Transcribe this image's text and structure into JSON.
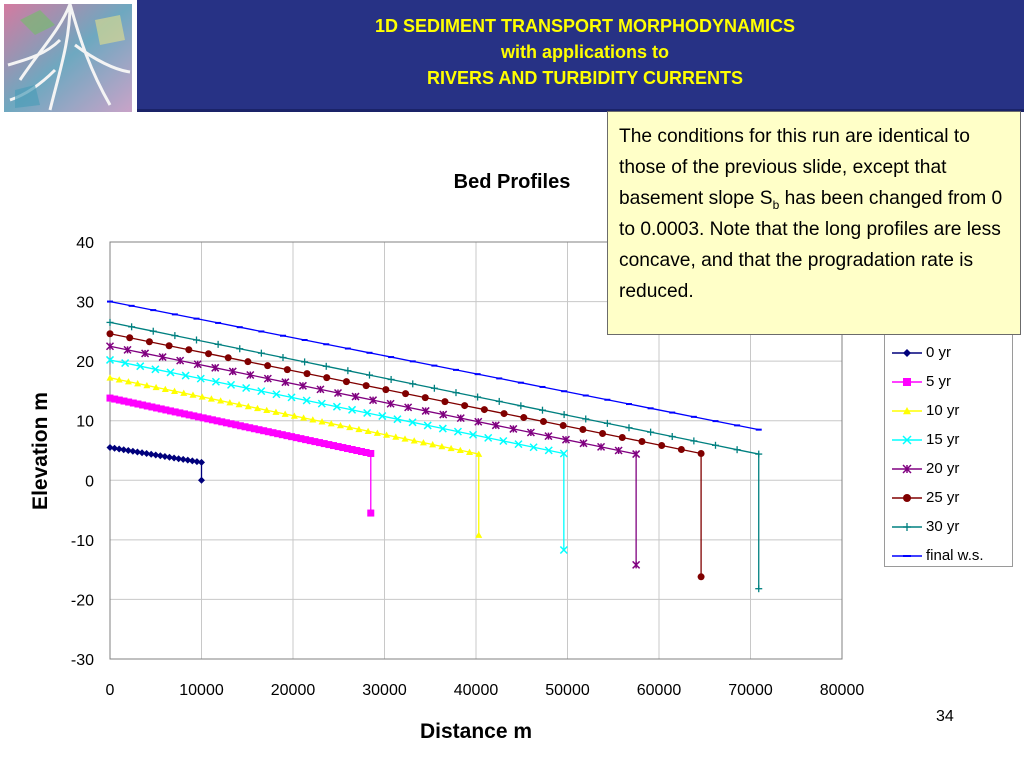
{
  "header": {
    "title_line1": "1D SEDIMENT TRANSPORT MORPHODYNAMICS",
    "title_line2": "with applications to",
    "title_line3": "RIVERS AND TURBIDITY CURRENTS"
  },
  "note": {
    "text_before_sub": "The conditions for this run are identical to those of the previous slide, except that basement slope S",
    "sub": "b",
    "text_after_sub": " has been changed from 0 to 0.0003.  Note that the long profiles are less concave, and that the progradation rate is reduced."
  },
  "slide_number": "34",
  "chart_data": {
    "type": "line",
    "title": "Bed Profiles",
    "xlabel": "Distance m",
    "ylabel": "Elevation m",
    "xlim": [
      0,
      80000
    ],
    "ylim": [
      -30,
      40
    ],
    "xticks": [
      0,
      10000,
      20000,
      30000,
      40000,
      50000,
      60000,
      70000,
      80000
    ],
    "yticks": [
      -30,
      -20,
      -10,
      0,
      10,
      20,
      30,
      40
    ],
    "grid": true,
    "legend_position": "right",
    "series": [
      {
        "name": "0 yr",
        "color": "#00007c",
        "marker": "diamond",
        "x_start": 0,
        "x_end": 10000,
        "y_start": 5.5,
        "y_end": 3.0,
        "n_points": 21,
        "foot_x": 10000,
        "foot_y": 0
      },
      {
        "name": "5 yr",
        "color": "#ff00ff",
        "marker": "square",
        "x_start": 0,
        "x_end": 28500,
        "y_start": 13.8,
        "y_end": 4.5,
        "n_points": 57,
        "foot_x": 28500,
        "foot_y": -5.5
      },
      {
        "name": "10 yr",
        "color": "#ffff00",
        "marker": "triangle",
        "x_start": 0,
        "x_end": 40300,
        "y_start": 17.2,
        "y_end": 4.4,
        "n_points": 41,
        "foot_x": 40300,
        "foot_y": -9.2
      },
      {
        "name": "15 yr",
        "color": "#00ffff",
        "marker": "x",
        "x_start": 0,
        "x_end": 49600,
        "y_start": 20.2,
        "y_end": 4.5,
        "n_points": 31,
        "foot_x": 49600,
        "foot_y": -11.7
      },
      {
        "name": "20 yr",
        "color": "#800080",
        "marker": "star",
        "x_start": 0,
        "x_end": 57500,
        "y_start": 22.5,
        "y_end": 4.4,
        "n_points": 31,
        "foot_x": 57500,
        "foot_y": -14.2
      },
      {
        "name": "25 yr",
        "color": "#800000",
        "marker": "circle",
        "x_start": 0,
        "x_end": 64600,
        "y_start": 24.6,
        "y_end": 4.5,
        "n_points": 31,
        "foot_x": 64600,
        "foot_y": -16.2
      },
      {
        "name": "30 yr",
        "color": "#008080",
        "marker": "plus",
        "x_start": 0,
        "x_end": 70900,
        "y_start": 26.5,
        "y_end": 4.4,
        "n_points": 31,
        "foot_x": 70900,
        "foot_y": -18.2
      },
      {
        "name": "final w.s.",
        "color": "#0000ff",
        "marker": "dash",
        "x_start": 0,
        "x_end": 70900,
        "y_start": 30.0,
        "y_end": 8.5,
        "n_points": 31
      }
    ]
  }
}
